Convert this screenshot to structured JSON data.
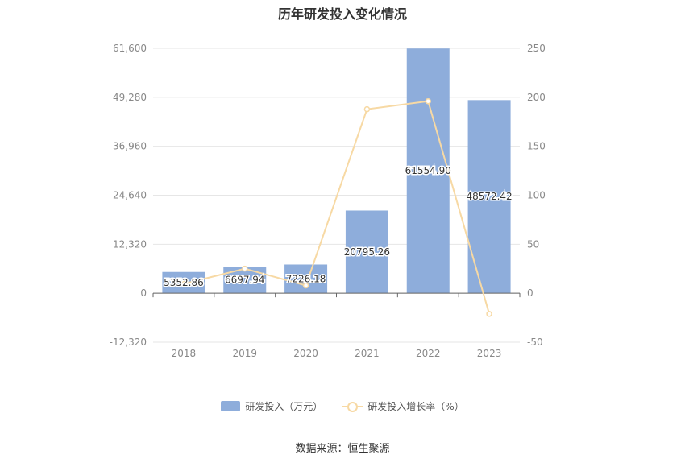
{
  "chart_data": {
    "type": "bar",
    "title": "历年研发投入变化情况",
    "categories": [
      "2018",
      "2019",
      "2020",
      "2021",
      "2022",
      "2023"
    ],
    "series": [
      {
        "name": "研发投入（万元）",
        "type": "bar",
        "axis": "left",
        "values": [
          5352.86,
          6697.94,
          7226.18,
          20795.26,
          61554.9,
          48572.42
        ],
        "labels": [
          "5352.86",
          "6697.94",
          "7226.18",
          "20795.26",
          "61554.90",
          "48572.42"
        ],
        "color": "#8eaddb"
      },
      {
        "name": "研发投入增长率（%）",
        "type": "line",
        "axis": "right",
        "values": [
          9.5,
          25.1,
          7.9,
          187.8,
          196.0,
          -21.1
        ],
        "color": "#f7d9a4"
      }
    ],
    "left_axis": {
      "ylim": [
        -12320,
        61600
      ],
      "ticks": [
        "-12,320",
        "0",
        "12,320",
        "24,640",
        "36,960",
        "49,280",
        "61,600"
      ]
    },
    "right_axis": {
      "ylim": [
        -50,
        250
      ],
      "ticks": [
        "-50",
        "0",
        "50",
        "100",
        "150",
        "200",
        "250"
      ]
    },
    "grid": true,
    "legend_position": "bottom"
  },
  "source": "数据来源：恒生聚源"
}
